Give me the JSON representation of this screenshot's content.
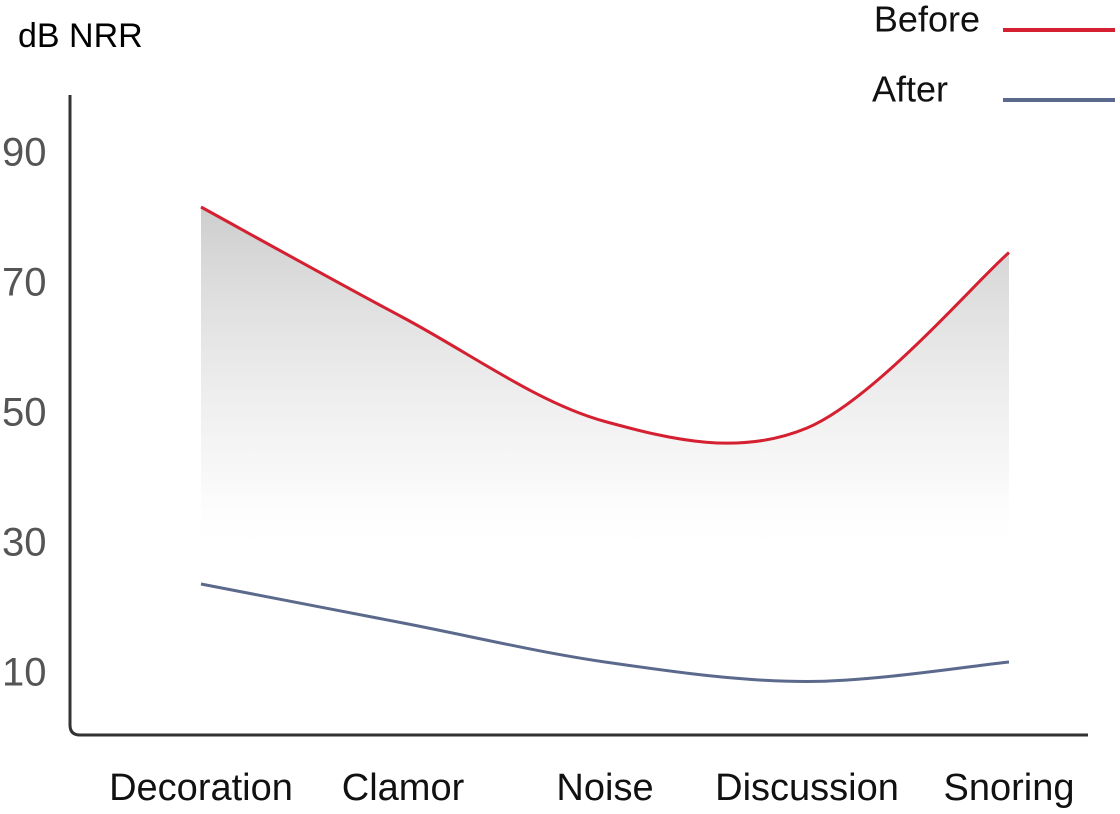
{
  "chart_data": {
    "type": "line",
    "title": "dB NRR",
    "categories": [
      "Decoration",
      "Clamor",
      "Noise",
      "Discussion",
      "Snoring"
    ],
    "series": [
      {
        "name": "Before",
        "color": "#d42030",
        "values": [
          82,
          65,
          49,
          48,
          75
        ]
      },
      {
        "name": "After",
        "color": "#5b6a8c",
        "values": [
          24,
          18,
          12,
          9,
          12
        ]
      }
    ],
    "ylim": [
      0,
      100
    ],
    "yticks": [
      10,
      30,
      50,
      70,
      90
    ],
    "grid": false,
    "legend": "top-right"
  }
}
